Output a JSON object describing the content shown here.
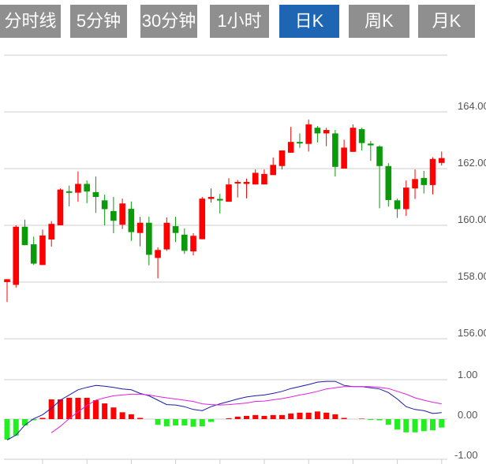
{
  "tabs": [
    {
      "label": "分时线",
      "active": false
    },
    {
      "label": "5分钟",
      "active": false
    },
    {
      "label": "30分钟",
      "active": false
    },
    {
      "label": "1小时",
      "active": false
    },
    {
      "label": "日K",
      "active": true
    },
    {
      "label": "周K",
      "active": false
    },
    {
      "label": "月K",
      "active": false
    }
  ],
  "colors": {
    "tab": "#8f8f8f",
    "tab_active": "#1e66b4",
    "up": "#ff0000",
    "down": "#0a9a0a",
    "hist_down": "#22ee22",
    "dif": "#1a1aaa",
    "dea": "#dd22dd"
  },
  "chart_data": [
    {
      "type": "candlestick",
      "ylim": [
        156,
        166
      ],
      "y_ticks": [
        "164.00",
        "162.00",
        "160.00",
        "158.00",
        "156.00"
      ],
      "grid": true,
      "ohlc": [
        [
          158.0,
          158.1,
          157.3,
          158.1
        ],
        [
          157.9,
          160.0,
          157.8,
          159.95
        ],
        [
          159.95,
          160.2,
          159.3,
          159.3
        ],
        [
          159.33,
          159.6,
          158.6,
          158.65
        ],
        [
          158.6,
          159.85,
          158.6,
          159.64
        ],
        [
          159.5,
          160.15,
          159.25,
          160.05
        ],
        [
          160.0,
          161.3,
          160.0,
          161.26
        ],
        [
          161.2,
          161.4,
          160.67,
          161.15
        ],
        [
          161.15,
          161.9,
          160.83,
          161.46
        ],
        [
          161.46,
          161.58,
          160.78,
          161.19
        ],
        [
          161.17,
          161.72,
          160.44,
          161.0
        ],
        [
          160.88,
          161.08,
          160.0,
          160.57
        ],
        [
          160.5,
          161.0,
          159.72,
          160.16
        ],
        [
          160.02,
          160.94,
          159.87,
          160.77
        ],
        [
          160.58,
          160.84,
          159.45,
          159.76
        ],
        [
          159.73,
          160.3,
          159.26,
          160.09
        ],
        [
          160.09,
          160.3,
          158.59,
          158.96
        ],
        [
          158.85,
          159.22,
          158.13,
          159.13
        ],
        [
          159.15,
          160.28,
          159.1,
          160.09
        ],
        [
          159.97,
          160.3,
          159.41,
          159.73
        ],
        [
          159.67,
          159.89,
          158.99,
          159.1
        ],
        [
          159.08,
          159.72,
          158.94,
          159.63
        ],
        [
          159.51,
          161.0,
          159.51,
          160.94
        ],
        [
          160.93,
          161.3,
          160.8,
          161.0
        ],
        [
          160.93,
          161.11,
          160.42,
          160.89
        ],
        [
          160.83,
          161.66,
          160.83,
          161.44
        ],
        [
          161.49,
          161.6,
          160.98,
          161.53
        ],
        [
          161.46,
          161.65,
          160.95,
          161.53
        ],
        [
          161.44,
          161.97,
          161.44,
          161.85
        ],
        [
          161.44,
          161.97,
          161.44,
          161.81
        ],
        [
          161.77,
          162.39,
          161.77,
          162.13
        ],
        [
          162.09,
          162.64,
          161.97,
          162.64
        ],
        [
          162.56,
          163.47,
          162.56,
          162.94
        ],
        [
          162.94,
          163.24,
          162.73,
          162.9
        ],
        [
          162.87,
          163.73,
          162.6,
          163.56
        ],
        [
          163.44,
          163.5,
          162.92,
          163.24
        ],
        [
          163.24,
          163.44,
          162.79,
          163.36
        ],
        [
          163.24,
          163.36,
          161.72,
          162.06
        ],
        [
          162.0,
          163.02,
          162.0,
          162.74
        ],
        [
          162.59,
          163.56,
          162.59,
          163.44
        ],
        [
          163.39,
          163.44,
          162.64,
          162.9
        ],
        [
          162.88,
          162.97,
          162.27,
          162.82
        ],
        [
          162.78,
          162.82,
          160.6,
          162.09
        ],
        [
          162.09,
          162.19,
          160.66,
          160.89
        ],
        [
          160.88,
          160.94,
          160.26,
          160.57
        ],
        [
          160.57,
          161.58,
          160.33,
          161.33
        ],
        [
          161.3,
          161.97,
          160.93,
          161.63
        ],
        [
          161.67,
          161.92,
          161.12,
          161.42
        ],
        [
          161.42,
          162.4,
          161.09,
          162.34
        ],
        [
          162.2,
          162.6,
          162.11,
          162.37
        ]
      ]
    },
    {
      "type": "macd",
      "ylim": [
        -1,
        1
      ],
      "y_ticks": [
        "1.00",
        "0.00",
        "-1.00"
      ],
      "histogram": [
        -0.51,
        -0.41,
        -0.16,
        -0.03,
        0.03,
        0.49,
        0.49,
        0.53,
        0.53,
        0.53,
        0.47,
        0.39,
        0.29,
        0.17,
        0.12,
        0.03,
        0,
        -0.14,
        -0.18,
        -0.16,
        -0.16,
        -0.19,
        -0.18,
        -0.07,
        0,
        0.02,
        0.06,
        0.08,
        0.1,
        0.08,
        0.1,
        0.1,
        0.14,
        0.16,
        0.16,
        0.19,
        0.16,
        0.12,
        0.03,
        0,
        0.01,
        -0.02,
        -0.03,
        -0.14,
        -0.26,
        -0.33,
        -0.33,
        -0.3,
        -0.28,
        -0.21
      ],
      "dif": [
        -0.52,
        -0.4,
        -0.15,
        0.01,
        0.11,
        0.27,
        0.47,
        0.6,
        0.73,
        0.79,
        0.84,
        0.82,
        0.79,
        0.75,
        0.73,
        0.64,
        0.58,
        0.47,
        0.36,
        0.35,
        0.31,
        0.24,
        0.21,
        0.31,
        0.38,
        0.44,
        0.5,
        0.55,
        0.58,
        0.6,
        0.64,
        0.69,
        0.76,
        0.81,
        0.86,
        0.92,
        0.94,
        0.94,
        0.84,
        0.81,
        0.81,
        0.78,
        0.75,
        0.66,
        0.5,
        0.31,
        0.24,
        0.21,
        0.14,
        0.16
      ],
      "dea": [
        null,
        null,
        null,
        null,
        null,
        -0.34,
        -0.18,
        0.01,
        0.18,
        0.34,
        0.47,
        0.53,
        0.58,
        0.6,
        0.62,
        0.62,
        0.6,
        0.56,
        0.53,
        0.5,
        0.47,
        0.44,
        0.38,
        0.36,
        0.35,
        0.36,
        0.38,
        0.4,
        0.44,
        0.45,
        0.48,
        0.51,
        0.55,
        0.6,
        0.64,
        0.69,
        0.75,
        0.78,
        0.81,
        0.81,
        0.81,
        0.81,
        0.79,
        0.76,
        0.69,
        0.62,
        0.53,
        0.47,
        0.42,
        0.38
      ]
    }
  ]
}
